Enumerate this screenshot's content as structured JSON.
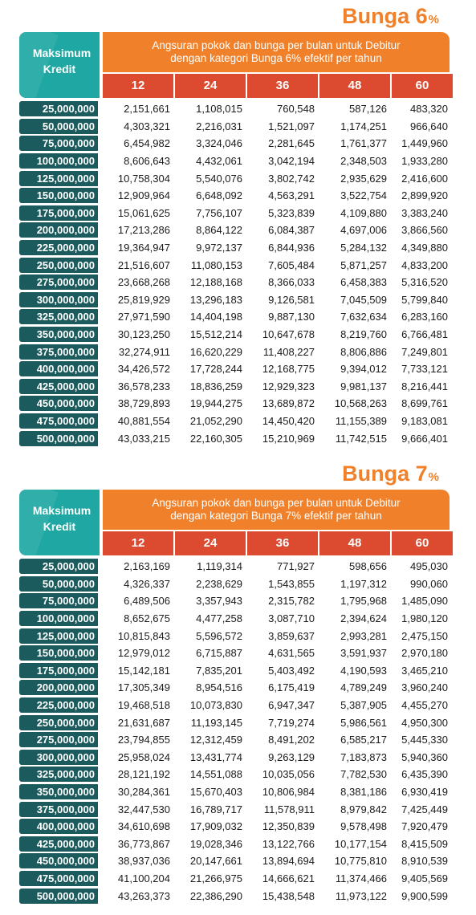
{
  "tables": [
    {
      "title": "Bunga 6",
      "title_suffix": "%",
      "corner_line1": "Maksimum",
      "corner_line2": "Kredit",
      "header_line1": "Angsuran pokok dan bunga per bulan untuk Debitur",
      "header_line2": "dengan kategori Bunga 6% efektif per tahun",
      "tenors": [
        "12",
        "24",
        "36",
        "48",
        "60"
      ],
      "rows": [
        {
          "amount": "25,000,000",
          "values": [
            "2,151,661",
            "1,108,015",
            "760,548",
            "587,126",
            "483,320"
          ]
        },
        {
          "amount": "50,000,000",
          "values": [
            "4,303,321",
            "2,216,031",
            "1,521,097",
            "1,174,251",
            "966,640"
          ]
        },
        {
          "amount": "75,000,000",
          "values": [
            "6,454,982",
            "3,324,046",
            "2,281,645",
            "1,761,377",
            "1,449,960"
          ]
        },
        {
          "amount": "100,000,000",
          "values": [
            "8,606,643",
            "4,432,061",
            "3,042,194",
            "2,348,503",
            "1,933,280"
          ]
        },
        {
          "amount": "125,000,000",
          "values": [
            "10,758,304",
            "5,540,076",
            "3,802,742",
            "2,935,629",
            "2,416,600"
          ]
        },
        {
          "amount": "150,000,000",
          "values": [
            "12,909,964",
            "6,648,092",
            "4,563,291",
            "3,522,754",
            "2,899,920"
          ]
        },
        {
          "amount": "175,000,000",
          "values": [
            "15,061,625",
            "7,756,107",
            "5,323,839",
            "4,109,880",
            "3,383,240"
          ]
        },
        {
          "amount": "200,000,000",
          "values": [
            "17,213,286",
            "8,864,122",
            "6,084,387",
            "4,697,006",
            "3,866,560"
          ]
        },
        {
          "amount": "225,000,000",
          "values": [
            "19,364,947",
            "9,972,137",
            "6,844,936",
            "5,284,132",
            "4,349,880"
          ]
        },
        {
          "amount": "250,000,000",
          "values": [
            "21,516,607",
            "11,080,153",
            "7,605,484",
            "5,871,257",
            "4,833,200"
          ]
        },
        {
          "amount": "275,000,000",
          "values": [
            "23,668,268",
            "12,188,168",
            "8,366,033",
            "6,458,383",
            "5,316,520"
          ]
        },
        {
          "amount": "300,000,000",
          "values": [
            "25,819,929",
            "13,296,183",
            "9,126,581",
            "7,045,509",
            "5,799,840"
          ]
        },
        {
          "amount": "325,000,000",
          "values": [
            "27,971,590",
            "14,404,198",
            "9,887,130",
            "7,632,634",
            "6,283,160"
          ]
        },
        {
          "amount": "350,000,000",
          "values": [
            "30,123,250",
            "15,512,214",
            "10,647,678",
            "8,219,760",
            "6,766,481"
          ]
        },
        {
          "amount": "375,000,000",
          "values": [
            "32,274,911",
            "16,620,229",
            "11,408,227",
            "8,806,886",
            "7,249,801"
          ]
        },
        {
          "amount": "400,000,000",
          "values": [
            "34,426,572",
            "17,728,244",
            "12,168,775",
            "9,394,012",
            "7,733,121"
          ]
        },
        {
          "amount": "425,000,000",
          "values": [
            "36,578,233",
            "18,836,259",
            "12,929,323",
            "9,981,137",
            "8,216,441"
          ]
        },
        {
          "amount": "450,000,000",
          "values": [
            "38,729,893",
            "19,944,275",
            "13,689,872",
            "10,568,263",
            "8,699,761"
          ]
        },
        {
          "amount": "475,000,000",
          "values": [
            "40,881,554",
            "21,052,290",
            "14,450,420",
            "11,155,389",
            "9,183,081"
          ]
        },
        {
          "amount": "500,000,000",
          "values": [
            "43,033,215",
            "22,160,305",
            "15,210,969",
            "11,742,515",
            "9,666,401"
          ]
        }
      ]
    },
    {
      "title": "Bunga 7",
      "title_suffix": "%",
      "corner_line1": "Maksimum",
      "corner_line2": "Kredit",
      "header_line1": "Angsuran pokok dan bunga per bulan untuk Debitur",
      "header_line2": "dengan kategori Bunga 7% efektif per tahun",
      "tenors": [
        "12",
        "24",
        "36",
        "48",
        "60"
      ],
      "rows": [
        {
          "amount": "25,000,000",
          "values": [
            "2,163,169",
            "1,119,314",
            "771,927",
            "598,656",
            "495,030"
          ]
        },
        {
          "amount": "50,000,000",
          "values": [
            "4,326,337",
            "2,238,629",
            "1,543,855",
            "1,197,312",
            "990,060"
          ]
        },
        {
          "amount": "75,000,000",
          "values": [
            "6,489,506",
            "3,357,943",
            "2,315,782",
            "1,795,968",
            "1,485,090"
          ]
        },
        {
          "amount": "100,000,000",
          "values": [
            "8,652,675",
            "4,477,258",
            "3,087,710",
            "2,394,624",
            "1,980,120"
          ]
        },
        {
          "amount": "125,000,000",
          "values": [
            "10,815,843",
            "5,596,572",
            "3,859,637",
            "2,993,281",
            "2,475,150"
          ]
        },
        {
          "amount": "150,000,000",
          "values": [
            "12,979,012",
            "6,715,887",
            "4,631,565",
            "3,591,937",
            "2,970,180"
          ]
        },
        {
          "amount": "175,000,000",
          "values": [
            "15,142,181",
            "7,835,201",
            "5,403,492",
            "4,190,593",
            "3,465,210"
          ]
        },
        {
          "amount": "200,000,000",
          "values": [
            "17,305,349",
            "8,954,516",
            "6,175,419",
            "4,789,249",
            "3,960,240"
          ]
        },
        {
          "amount": "225,000,000",
          "values": [
            "19,468,518",
            "10,073,830",
            "6,947,347",
            "5,387,905",
            "4,455,270"
          ]
        },
        {
          "amount": "250,000,000",
          "values": [
            "21,631,687",
            "11,193,145",
            "7,719,274",
            "5,986,561",
            "4,950,300"
          ]
        },
        {
          "amount": "275,000,000",
          "values": [
            "23,794,855",
            "12,312,459",
            "8,491,202",
            "6,585,217",
            "5,445,330"
          ]
        },
        {
          "amount": "300,000,000",
          "values": [
            "25,958,024",
            "13,431,774",
            "9,263,129",
            "7,183,873",
            "5,940,360"
          ]
        },
        {
          "amount": "325,000,000",
          "values": [
            "28,121,192",
            "14,551,088",
            "10,035,056",
            "7,782,530",
            "6,435,390"
          ]
        },
        {
          "amount": "350,000,000",
          "values": [
            "30,284,361",
            "15,670,403",
            "10,806,984",
            "8,381,186",
            "6,930,419"
          ]
        },
        {
          "amount": "375,000,000",
          "values": [
            "32,447,530",
            "16,789,717",
            "11,578,911",
            "8,979,842",
            "7,425,449"
          ]
        },
        {
          "amount": "400,000,000",
          "values": [
            "34,610,698",
            "17,909,032",
            "12,350,839",
            "9,578,498",
            "7,920,479"
          ]
        },
        {
          "amount": "425,000,000",
          "values": [
            "36,773,867",
            "19,028,346",
            "13,122,766",
            "10,177,154",
            "8,415,509"
          ]
        },
        {
          "amount": "450,000,000",
          "values": [
            "38,937,036",
            "20,147,661",
            "13,894,694",
            "10,775,810",
            "8,910,539"
          ]
        },
        {
          "amount": "475,000,000",
          "values": [
            "41,100,204",
            "21,266,975",
            "14,666,621",
            "11,374,466",
            "9,405,569"
          ]
        },
        {
          "amount": "500,000,000",
          "values": [
            "43,263,373",
            "22,386,290",
            "15,438,548",
            "11,973,122",
            "9,900,599"
          ]
        }
      ]
    }
  ]
}
